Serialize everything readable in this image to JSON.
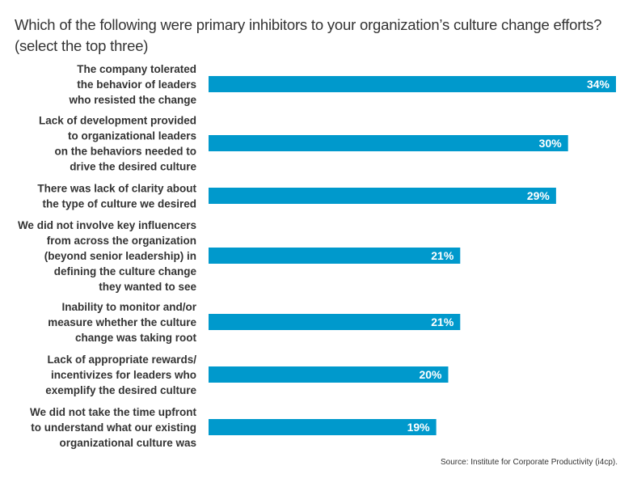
{
  "chart_data": {
    "type": "bar",
    "orientation": "horizontal",
    "title": "Which of the following were primary inhibitors to your organization’s culture change efforts? (select the top three)",
    "categories": [
      [
        "The company tolerated",
        "the behavior of leaders",
        "who resisted the change"
      ],
      [
        "Lack of development provided",
        "to organizational leaders",
        "on the behaviors needed to",
        "drive the desired culture"
      ],
      [
        "There was lack of clarity about",
        "the type of culture we desired"
      ],
      [
        "We did not involve key influencers",
        "from across the organization",
        "(beyond senior leadership) in",
        "defining the culture change",
        "they wanted to see"
      ],
      [
        "Inability to monitor and/or",
        "measure whether the culture",
        "change was taking root"
      ],
      [
        "Lack of appropriate rewards/",
        "incentivizes for leaders who",
        "exemplify the desired culture"
      ],
      [
        "We did not take the time upfront",
        "to understand what our existing",
        "organizational culture was"
      ]
    ],
    "values": [
      34,
      30,
      29,
      21,
      21,
      20,
      19
    ],
    "value_labels": [
      "34%",
      "30%",
      "29%",
      "21%",
      "21%",
      "20%",
      "19%"
    ],
    "unit": "%",
    "xlim": [
      0,
      34
    ],
    "grid": false,
    "bar_color": "#0099cc",
    "source": "Source: Institute for Corporate Productivity (i4cp)."
  }
}
